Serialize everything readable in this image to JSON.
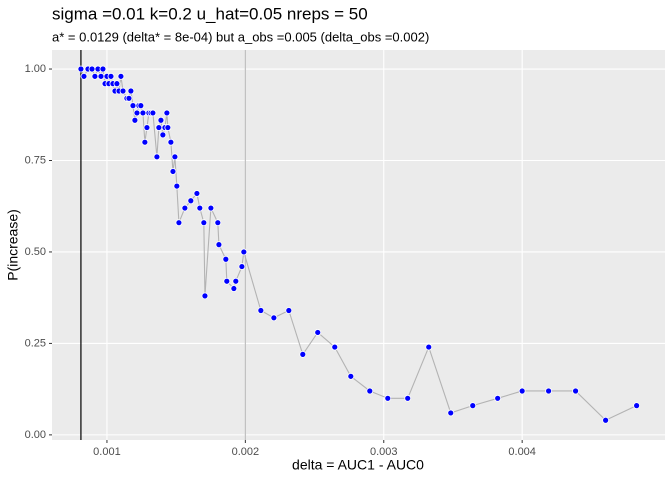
{
  "chart_data": {
    "type": "line",
    "title": "sigma =0.01  k=0.2  u_hat=0.05  nreps = 50",
    "subtitle": "a* = 0.0129 (delta* = 8e-04) but a_obs =0.005 (delta_obs =0.002)",
    "x_label": "delta = AUC1 - AUC0",
    "y_label": "P(increase)",
    "x": [
      0.000812,
      0.000834,
      0.000863,
      0.000892,
      0.000913,
      0.000935,
      0.000957,
      0.000971,
      0.000986,
      0.001,
      0.001014,
      0.001029,
      0.001043,
      0.001058,
      0.001072,
      0.001087,
      0.001101,
      0.001116,
      0.001144,
      0.001159,
      0.001173,
      0.001188,
      0.001202,
      0.001217,
      0.001231,
      0.001245,
      0.00126,
      0.001274,
      0.001289,
      0.001303,
      0.001318,
      0.001332,
      0.001361,
      0.001375,
      0.00139,
      0.001404,
      0.001419,
      0.001433,
      0.00144,
      0.001462,
      0.001477,
      0.001491,
      0.001505,
      0.00152,
      0.001563,
      0.001606,
      0.00165,
      0.001671,
      0.0017,
      0.001708,
      0.001751,
      0.001801,
      0.001809,
      0.001859,
      0.001866,
      0.001917,
      0.001931,
      0.001975,
      0.001989,
      0.002112,
      0.002206,
      0.002314,
      0.002415,
      0.002523,
      0.002646,
      0.002762,
      0.002899,
      0.003029,
      0.003173,
      0.003325,
      0.003484,
      0.003643,
      0.003823,
      0.004,
      0.004191,
      0.004386,
      0.004603,
      0.004827
    ],
    "values": [
      1,
      0.98,
      1,
      1,
      0.98,
      1,
      0.98,
      1,
      0.96,
      0.98,
      0.96,
      0.98,
      0.96,
      0.94,
      0.96,
      0.94,
      0.98,
      0.94,
      0.92,
      0.92,
      0.94,
      0.9,
      0.86,
      0.88,
      0.9,
      0.9,
      0.88,
      0.8,
      0.84,
      0.88,
      0.88,
      0.88,
      0.76,
      0.84,
      0.86,
      0.82,
      0.84,
      0.88,
      0.84,
      0.8,
      0.72,
      0.76,
      0.68,
      0.58,
      0.62,
      0.64,
      0.66,
      0.62,
      0.58,
      0.38,
      0.62,
      0.58,
      0.52,
      0.48,
      0.42,
      0.4,
      0.42,
      0.46,
      0.5,
      0.34,
      0.32,
      0.34,
      0.22,
      0.28,
      0.24,
      0.16,
      0.12,
      0.1,
      0.1,
      0.24,
      0.06,
      0.08,
      0.1,
      0.12,
      0.12,
      0.12,
      0.04,
      0.08
    ],
    "color": "#0000ff",
    "line_color": "#b3b3b3",
    "vlines": [
      {
        "x": 0.000812,
        "color": "#000000"
      },
      {
        "x": 0.002,
        "color": "#bebebe"
      }
    ],
    "xlim": [
      0.000603,
      0.005032
    ],
    "ylim": [
      -0.014,
      1.052
    ],
    "xticks": [
      0.001,
      0.002,
      0.003,
      0.004
    ],
    "yticks": [
      {
        "value": 0,
        "label": "0.00"
      },
      {
        "value": 0.25,
        "label": "0.25"
      },
      {
        "value": 0.5,
        "label": "0.50"
      },
      {
        "value": 0.75,
        "label": "0.75"
      },
      {
        "value": 1,
        "label": "1.00"
      }
    ],
    "grid": true
  }
}
